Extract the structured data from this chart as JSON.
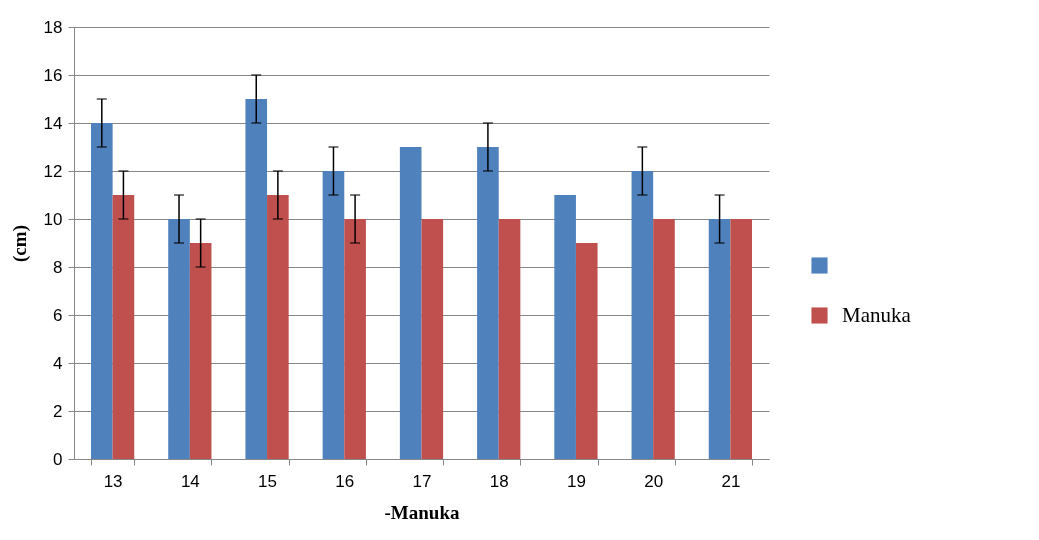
{
  "chart_data": {
    "type": "bar",
    "xlabel": "-Manuka",
    "ylabel": "(cm)",
    "categories": [
      "13",
      "14",
      "15",
      "16",
      "17",
      "18",
      "19",
      "20",
      "21"
    ],
    "series": [
      {
        "color": "#4f81bd",
        "values": [
          14,
          10,
          15,
          12,
          13,
          13,
          11,
          12,
          10
        ],
        "errors": [
          1,
          1,
          1,
          1,
          null,
          1,
          null,
          1,
          1
        ]
      },
      {
        "name": "Manuka",
        "color": "#c0504d",
        "values": [
          11,
          9,
          11,
          10,
          10,
          10,
          9,
          10,
          10
        ],
        "errors": [
          1,
          1,
          1,
          1,
          null,
          null,
          null,
          null,
          null
        ]
      }
    ],
    "ylim": [
      0,
      18
    ],
    "yticks": [
      0,
      2,
      4,
      6,
      8,
      10,
      12,
      14,
      16,
      18
    ],
    "grid": "y",
    "legend": "right"
  }
}
